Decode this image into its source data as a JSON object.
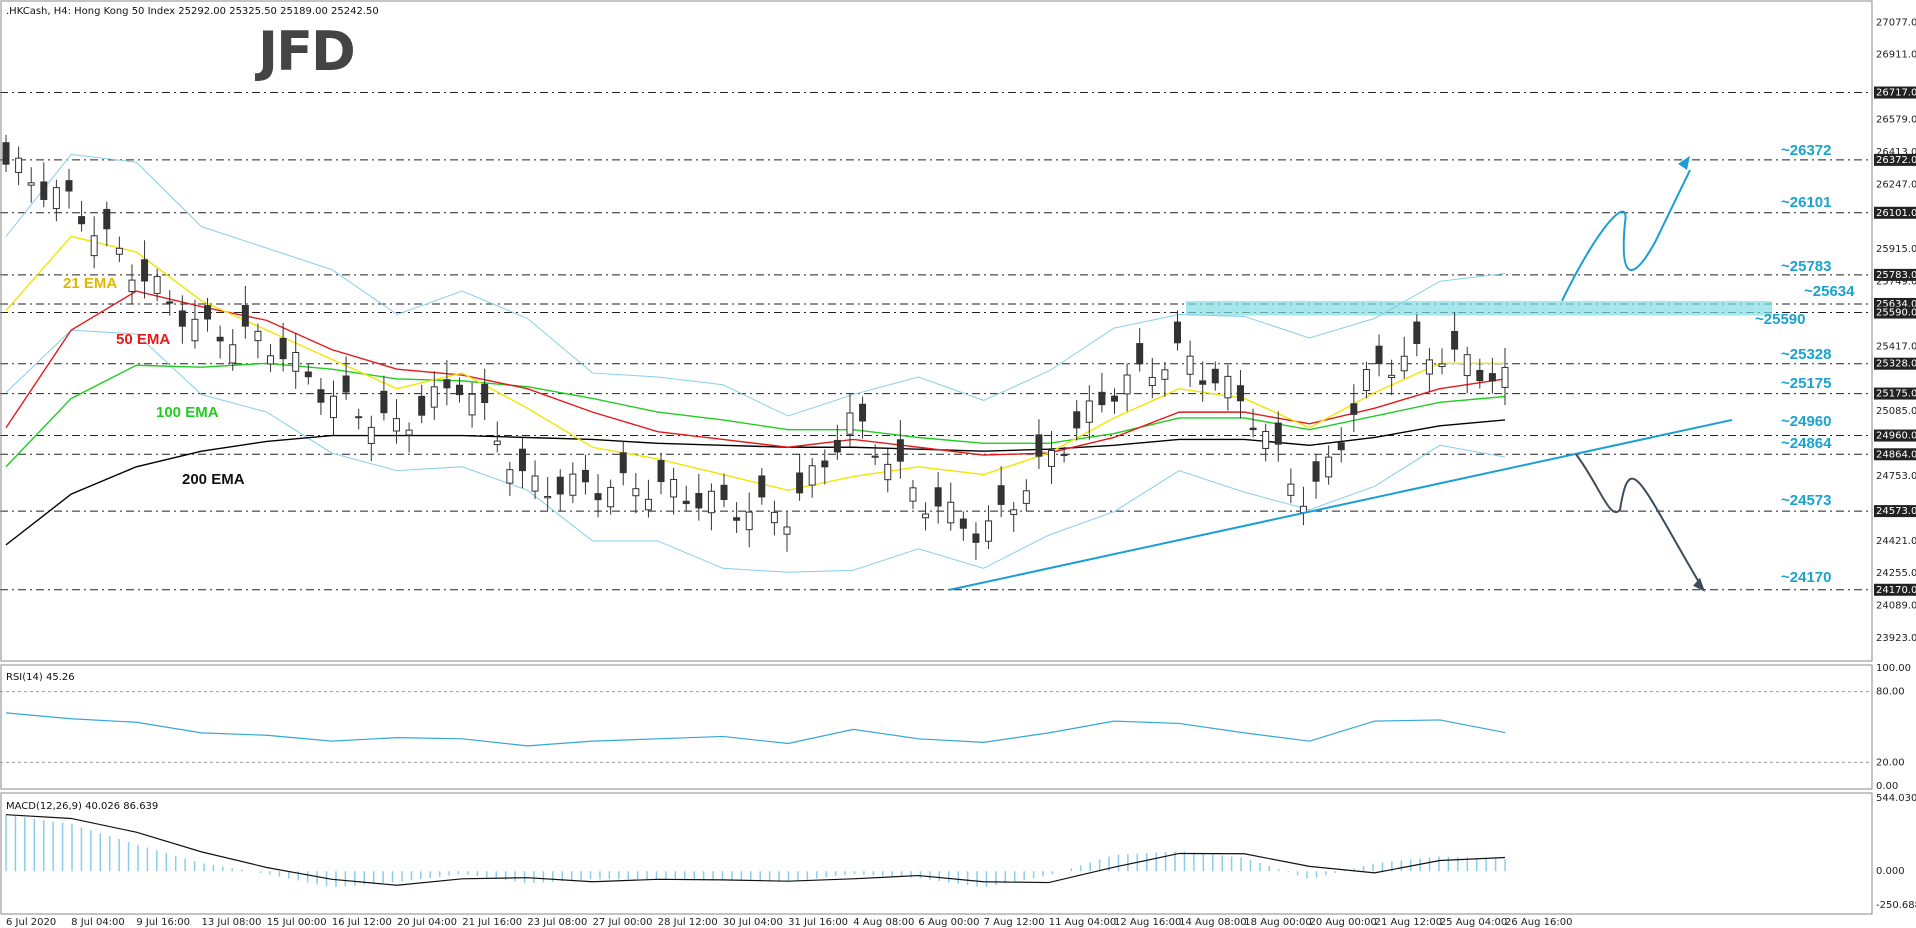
{
  "header": {
    "symbol_line": ".HKCash, H4:  Hong Kong 50 Index  25292.00 25325.50 25189.00 25242.50"
  },
  "logo": {
    "text": "JFD"
  },
  "colors": {
    "candle_up": "#ffffff",
    "candle_down": "#333333",
    "bollinger": "#87ceeb",
    "ema21": "#f2e600",
    "ema50": "#e41a1c",
    "ema100": "#22cc22",
    "ema200": "#000000",
    "trendline": "#1a9ed4",
    "accent_levels": "#1aa3cf",
    "zone": "#7fdde3",
    "bull_arrow": "#1a9ed4",
    "bear_arrow": "#3e4b5a",
    "macd_hist": "#87ceeb",
    "rsi": "#35a7d6"
  },
  "ema_labels": [
    {
      "text": "21 EMA",
      "color": "#e0b800"
    },
    {
      "text": "50 EMA",
      "color": "#e41a1c"
    },
    {
      "text": "100 EMA",
      "color": "#22cc22"
    },
    {
      "text": "200 EMA",
      "color": "#111111"
    }
  ],
  "level_labels": [
    "~26372",
    "~26101",
    "~25783",
    "~25634",
    "~25590",
    "~25328",
    "~25175",
    "~24960",
    "~24864",
    "~24573",
    "~24170"
  ],
  "price_axis": {
    "ticks": [
      "27077.00",
      "26911.00",
      "26579.00",
      "26413.00",
      "26247.00",
      "25915.00",
      "25749.00",
      "25417.00",
      "25085.00",
      "24753.00",
      "24421.00",
      "24255.00",
      "24089.00",
      "23923.00"
    ],
    "boxed": [
      "26717.00",
      "26372.00",
      "26101.00",
      "25783.00",
      "25634.00",
      "25590.00",
      "25328.00",
      "25175.00",
      "24960.00",
      "24864.00",
      "24573.00",
      "24170.00"
    ]
  },
  "rsi_panel": {
    "label": "RSI(14) 45.26",
    "ticks": [
      "100.00",
      "80.00",
      "20.00",
      "0.00"
    ]
  },
  "macd_panel": {
    "label": "MACD(12,26,9) 40.026 86.639",
    "ticks": [
      "544.030",
      "0.000",
      "-250.688"
    ]
  },
  "time_axis": [
    "6 Jul 2020",
    "8 Jul 04:00",
    "9 Jul 16:00",
    "13 Jul 08:00",
    "15 Jul 00:00",
    "16 Jul 12:00",
    "20 Jul 04:00",
    "21 Jul 16:00",
    "23 Jul 08:00",
    "27 Jul 00:00",
    "28 Jul 12:00",
    "30 Jul 04:00",
    "31 Jul 16:00",
    "4 Aug 08:00",
    "6 Aug 00:00",
    "7 Aug 12:00",
    "11 Aug 04:00",
    "12 Aug 16:00",
    "14 Aug 08:00",
    "18 Aug 00:00",
    "20 Aug 00:00",
    "21 Aug 12:00",
    "25 Aug 04:00",
    "26 Aug 16:00"
  ],
  "chart_data": {
    "type": "candlestick",
    "x": [
      "6 Jul 2020",
      "8 Jul 04:00",
      "9 Jul 16:00",
      "13 Jul 08:00",
      "15 Jul 00:00",
      "16 Jul 12:00",
      "20 Jul 04:00",
      "21 Jul 16:00",
      "23 Jul 08:00",
      "27 Jul 00:00",
      "28 Jul 12:00",
      "30 Jul 04:00",
      "31 Jul 16:00",
      "4 Aug 08:00",
      "6 Aug 00:00",
      "7 Aug 12:00",
      "11 Aug 04:00",
      "12 Aug 16:00",
      "14 Aug 08:00",
      "18 Aug 00:00",
      "20 Aug 00:00",
      "21 Aug 12:00",
      "25 Aug 04:00",
      "26 Aug 16:00"
    ],
    "close": [
      26350,
      26150,
      25800,
      25500,
      25450,
      25150,
      25000,
      25250,
      24700,
      24700,
      24700,
      24600,
      24560,
      25050,
      24650,
      24450,
      24850,
      25200,
      25380,
      25130,
      24600,
      25320,
      25390,
      25242.5
    ],
    "ema21": [
      25600,
      25980,
      25900,
      25650,
      25500,
      25350,
      25200,
      25280,
      25100,
      24900,
      24840,
      24760,
      24680,
      24750,
      24800,
      24760,
      24870,
      25050,
      25200,
      25150,
      25000,
      25180,
      25330,
      25330
    ],
    "ema50": [
      25000,
      25500,
      25700,
      25620,
      25550,
      25400,
      25300,
      25270,
      25200,
      25080,
      24980,
      24940,
      24900,
      24940,
      24900,
      24860,
      24870,
      24950,
      25080,
      25080,
      25020,
      25100,
      25200,
      25250
    ],
    "ema100": [
      24800,
      25150,
      25320,
      25310,
      25330,
      25300,
      25250,
      25240,
      25210,
      25150,
      25080,
      25040,
      24990,
      24990,
      24950,
      24920,
      24920,
      24970,
      25050,
      25050,
      24990,
      25060,
      25130,
      25160
    ],
    "ema200": [
      24400,
      24660,
      24800,
      24880,
      24930,
      24960,
      24960,
      24960,
      24950,
      24940,
      24920,
      24910,
      24900,
      24900,
      24890,
      24880,
      24890,
      24910,
      24940,
      24940,
      24910,
      24950,
      25010,
      25040
    ],
    "rsi": [
      62,
      57,
      54,
      45,
      43,
      38,
      41,
      40,
      34,
      38,
      40,
      42,
      36,
      48,
      40,
      37,
      45,
      55,
      53,
      45,
      38,
      55,
      56,
      45.26
    ],
    "macd": [
      420,
      350,
      200,
      60,
      -20,
      -120,
      -80,
      -20,
      -90,
      -60,
      -60,
      -70,
      -80,
      -20,
      -50,
      -120,
      -30,
      120,
      150,
      100,
      -60,
      60,
      110,
      90
    ],
    "annotation_levels": [
      26372,
      26101,
      25783,
      25634,
      25590,
      25328,
      25175,
      24960,
      24864,
      24573,
      24170
    ],
    "ylim": [
      23800,
      27150
    ],
    "rsi_levels": [
      80,
      20
    ],
    "macd_range": [
      -250.688,
      544.03
    ],
    "grid": false
  }
}
